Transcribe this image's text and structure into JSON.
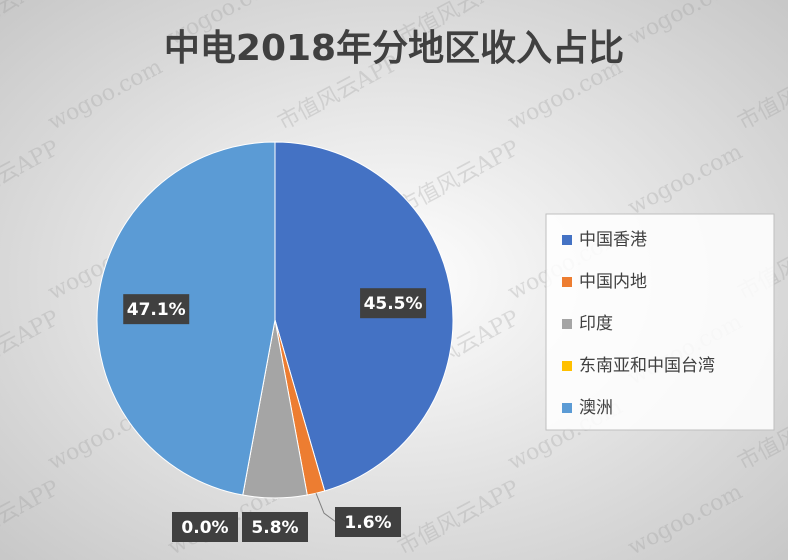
{
  "chart_data": {
    "type": "pie",
    "title": "中电2018年分地区收入占比",
    "categories": [
      "中国香港",
      "中国内地",
      "印度",
      "东南亚和中国台湾",
      "澳洲"
    ],
    "values": [
      45.5,
      1.6,
      5.8,
      0.0,
      47.1
    ],
    "value_labels": [
      "45.5%",
      "1.6%",
      "5.8%",
      "0.0%",
      "47.1%"
    ],
    "colors": [
      "#4472c4",
      "#ed7d31",
      "#a5a5a5",
      "#ffc000",
      "#5b9bd5"
    ],
    "legend": "right"
  },
  "watermark": [
    "市值风云APP",
    "wogoo.com"
  ]
}
